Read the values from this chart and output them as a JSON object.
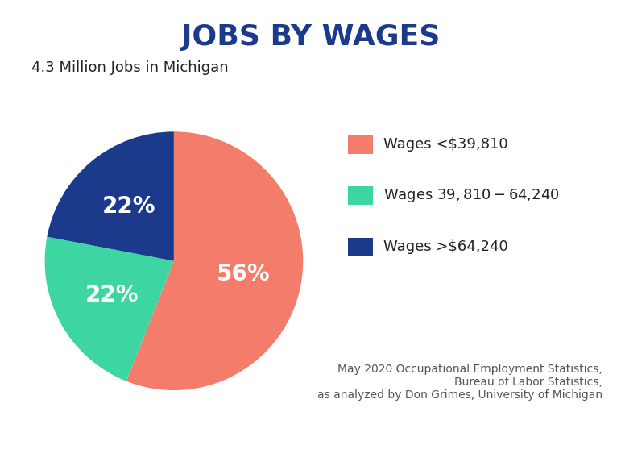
{
  "title": "JOBS BY WAGES",
  "subtitle": "4.3 Million Jobs in Michigan",
  "slices": [
    56,
    22,
    22
  ],
  "labels": [
    "56%",
    "22%",
    "22%"
  ],
  "colors": [
    "#F47C6A",
    "#3DD6A3",
    "#1B3A8C"
  ],
  "legend_labels": [
    "Wages <$39,810",
    "Wages $39,810 - $64,240",
    "Wages >$64,240"
  ],
  "legend_colors": [
    "#F47C6A",
    "#3DD6A3",
    "#1B3A8C"
  ],
  "footnote": "May 2020 Occupational Employment Statistics,\nBureau of Labor Statistics,\nas analyzed by Don Grimes, University of Michigan",
  "title_color": "#1B3A8C",
  "label_color": "#FFFFFF",
  "subtitle_color": "#222222",
  "background_color": "#FFFFFF",
  "startangle": 90,
  "label_fontsize": 20,
  "title_fontsize": 26,
  "subtitle_fontsize": 13,
  "legend_fontsize": 13,
  "footnote_fontsize": 10
}
